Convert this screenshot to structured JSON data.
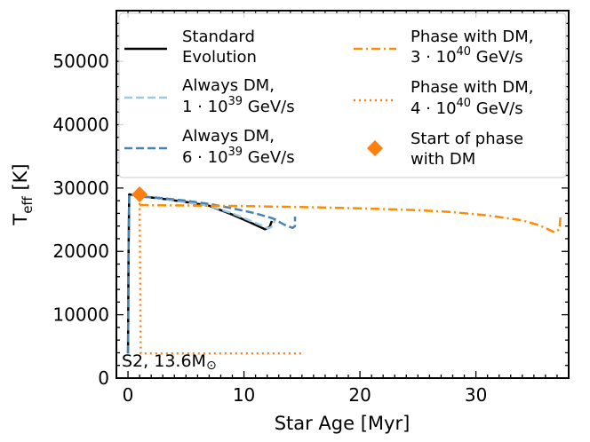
{
  "chart_data": {
    "type": "line",
    "xlabel": "Star Age [Myr]",
    "ylabel_main": "T",
    "ylabel_sub": "eff",
    "ylabel_unit": " [K]",
    "xlim": [
      -1,
      38
    ],
    "ylim": [
      0,
      58000
    ],
    "xticks": [
      0,
      10,
      20,
      30
    ],
    "yticks": [
      0,
      10000,
      20000,
      30000,
      40000,
      50000
    ],
    "annotation": {
      "text": "S2, 13.6M",
      "symbol": "⊙"
    },
    "legend_position": "top",
    "series": [
      {
        "name": "Standard Evolution",
        "legend_lines": [
          "Standard",
          "Evolution"
        ],
        "color": "#000000",
        "dash": "solid",
        "x": [
          0.0,
          0.05,
          0.1,
          1.0,
          3.0,
          5.0,
          7.0,
          9.0,
          10.5,
          11.8,
          12.2,
          12.4
        ],
        "y": [
          3900,
          20000,
          29000,
          28700,
          28300,
          27800,
          27200,
          25800,
          24600,
          23500,
          23800,
          24800
        ]
      },
      {
        "name": "Always DM, 1 · 10^39 GeV/s",
        "legend_lines": [
          "Always DM,",
          "1 · 10",
          "39",
          " GeV/s"
        ],
        "color": "#9ecae1",
        "dash": "dashed",
        "x": [
          0.0,
          0.05,
          0.1,
          1.0,
          3.0,
          5.0,
          7.0,
          9.0,
          11.0,
          12.1,
          12.5,
          12.7
        ],
        "y": [
          3900,
          20000,
          29000,
          28700,
          28300,
          27800,
          27200,
          26000,
          24500,
          23600,
          24000,
          25200
        ]
      },
      {
        "name": "Always DM, 6 · 10^39 GeV/s",
        "legend_lines": [
          "Always DM,",
          "6 · 10",
          "39",
          " GeV/s"
        ],
        "color": "#4682b4",
        "dash": "dashed",
        "x": [
          0.0,
          0.05,
          0.1,
          1.0,
          3.0,
          5.0,
          7.0,
          9.0,
          11.0,
          12.5,
          13.5,
          14.2,
          14.4,
          14.4
        ],
        "y": [
          3900,
          20000,
          29000,
          28700,
          28400,
          28000,
          27500,
          26800,
          26000,
          25200,
          24200,
          23700,
          24000,
          25500
        ]
      },
      {
        "name": "Phase with DM, 3 · 10^40 GeV/s",
        "legend_lines": [
          "Phase with DM,",
          "3 · 10",
          "40",
          " GeV/s"
        ],
        "color": "#ff8c00",
        "dash": "dashdot",
        "x": [
          1.0,
          5,
          10,
          15,
          20,
          25,
          28,
          31,
          34,
          35.5,
          36.8,
          37.2,
          37.3
        ],
        "y": [
          27300,
          27250,
          27150,
          27000,
          26800,
          26500,
          26200,
          25700,
          24900,
          24100,
          23000,
          23500,
          25700
        ]
      },
      {
        "name": "Phase with DM, 4 · 10^40 GeV/s",
        "legend_lines": [
          "Phase with DM,",
          "4 · 10",
          "40",
          " GeV/s"
        ],
        "color": "#ff7f0e",
        "dash": "dotted",
        "x": [
          1.0,
          1.05,
          1.1,
          15.0
        ],
        "y": [
          28500,
          15000,
          3900,
          3900
        ]
      },
      {
        "name": "Start of phase with DM",
        "legend_lines": [
          "Start of phase",
          "with DM"
        ],
        "color": "#ff7f0e",
        "marker": "diamond",
        "x": [
          1.0
        ],
        "y": [
          29000
        ]
      }
    ]
  }
}
